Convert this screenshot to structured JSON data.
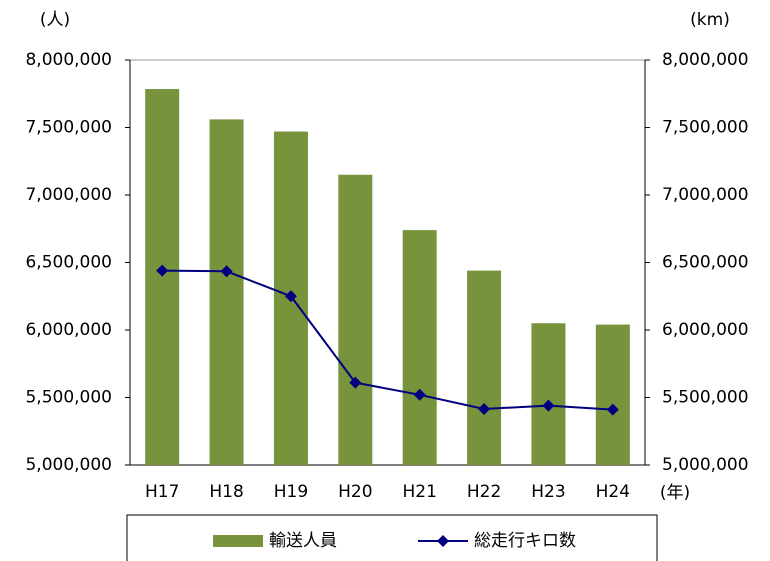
{
  "chart_data": {
    "type": "bar-line",
    "y_label": "(人)",
    "y2_label": "(km)",
    "x_label": "(年)",
    "categories": [
      "H17",
      "H18",
      "H19",
      "H20",
      "H21",
      "H22",
      "H23",
      "H24"
    ],
    "series": [
      {
        "name": "輸送人員",
        "type": "bar",
        "color": "#77933c",
        "values": [
          7785000,
          7560000,
          7470000,
          7150000,
          6740000,
          6440000,
          6050000,
          6040000
        ]
      },
      {
        "name": "総走行キロ数",
        "type": "line",
        "color": "#000080",
        "axis": "y2",
        "values": [
          6440000,
          6435000,
          6250000,
          5610000,
          5520000,
          5415000,
          5440000,
          5410000
        ]
      }
    ],
    "ylim": [
      5000000,
      8000000
    ],
    "yticks": [
      {
        "value": 5000000,
        "label": "5,000,000"
      },
      {
        "value": 5500000,
        "label": "5,500,000"
      },
      {
        "value": 6000000,
        "label": "6,000,000"
      },
      {
        "value": 6500000,
        "label": "6,500,000"
      },
      {
        "value": 7000000,
        "label": "7,000,000"
      },
      {
        "value": 7500000,
        "label": "7,500,000"
      },
      {
        "value": 8000000,
        "label": "8,000,000"
      }
    ],
    "y2lim": [
      5000000,
      8000000
    ],
    "y2ticks": [
      {
        "value": 5000000,
        "label": "5,000,000"
      },
      {
        "value": 5500000,
        "label": "5,500,000"
      },
      {
        "value": 6000000,
        "label": "6,000,000"
      },
      {
        "value": 6500000,
        "label": "6,500,000"
      },
      {
        "value": 7000000,
        "label": "7,000,000"
      },
      {
        "value": 7500000,
        "label": "7,500,000"
      },
      {
        "value": 8000000,
        "label": "8,000,000"
      }
    ],
    "legend": "bottom"
  }
}
